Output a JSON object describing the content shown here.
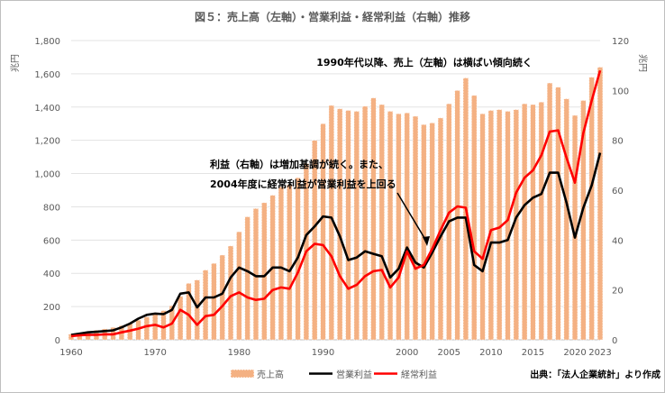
{
  "chart_data": {
    "type": "bar+line",
    "title": "図５：売上高（左軸）・営業利益・経常利益（右軸）推移",
    "y_left": {
      "unit": "兆円",
      "range": [
        0,
        1800
      ],
      "ticks": [
        "0",
        "200",
        "400",
        "600",
        "800",
        "1,000",
        "1,200",
        "1,400",
        "1,600",
        "1,800"
      ]
    },
    "y_right": {
      "unit": "兆円",
      "range": [
        0,
        120
      ],
      "ticks": [
        "0",
        "20",
        "40",
        "60",
        "80",
        "100",
        "120"
      ]
    },
    "x_ticks": [
      "1960",
      "1970",
      "1980",
      "1990",
      "2000",
      "2005",
      "2010",
      "2015",
      "2020",
      "2023"
    ],
    "grid": true,
    "legend_position": "bottom",
    "x": [
      1960,
      1961,
      1962,
      1963,
      1964,
      1965,
      1966,
      1967,
      1968,
      1969,
      1970,
      1971,
      1972,
      1973,
      1974,
      1975,
      1976,
      1977,
      1978,
      1979,
      1980,
      1981,
      1982,
      1983,
      1984,
      1985,
      1986,
      1987,
      1988,
      1989,
      1990,
      1991,
      1992,
      1993,
      1994,
      1995,
      1996,
      1997,
      1998,
      1999,
      2000,
      2001,
      2002,
      2003,
      2004,
      2005,
      2006,
      2007,
      2008,
      2009,
      2010,
      2011,
      2012,
      2013,
      2014,
      2015,
      2016,
      2017,
      2018,
      2019,
      2020,
      2021,
      2022,
      2023
    ],
    "series": [
      {
        "name": "売上高",
        "kind": "bar",
        "axis": "left",
        "color": "#f4b183",
        "values": [
          35,
          42,
          50,
          58,
          66,
          75,
          86,
          100,
          118,
          138,
          160,
          176,
          205,
          262,
          340,
          360,
          420,
          460,
          510,
          565,
          650,
          740,
          790,
          825,
          870,
          920,
          935,
          975,
          1060,
          1200,
          1300,
          1410,
          1390,
          1380,
          1375,
          1405,
          1455,
          1415,
          1375,
          1360,
          1365,
          1345,
          1295,
          1305,
          1335,
          1420,
          1500,
          1575,
          1470,
          1360,
          1380,
          1385,
          1375,
          1385,
          1420,
          1415,
          1430,
          1545,
          1520,
          1450,
          1350,
          1440,
          1580,
          1640
        ]
      },
      {
        "name": "営業利益",
        "kind": "line",
        "axis": "right",
        "color": "#000000",
        "values": [
          2,
          2.5,
          3,
          3.2,
          3.5,
          3.8,
          5,
          6.5,
          8.5,
          10,
          10.5,
          10.3,
          12,
          18.5,
          19,
          13,
          17,
          17,
          18.5,
          25,
          29,
          27.5,
          25.5,
          25.5,
          29,
          29,
          27.5,
          33,
          42,
          45.5,
          49.5,
          49,
          41.5,
          32,
          33,
          35.5,
          34.5,
          33.5,
          25,
          28.5,
          37,
          31,
          29,
          35,
          41.5,
          47.5,
          49,
          49,
          30,
          27.5,
          39,
          39,
          40,
          49,
          54,
          57,
          58.5,
          67,
          67,
          55,
          41,
          53,
          62,
          75
        ]
      },
      {
        "name": "経常利益",
        "kind": "line",
        "axis": "right",
        "color": "#ff0000",
        "values": [
          1.5,
          1.8,
          2,
          2,
          2.2,
          2.2,
          3,
          3.7,
          4.5,
          5.5,
          6,
          5,
          6.5,
          12,
          10,
          6,
          9.5,
          10,
          13.5,
          17.5,
          19,
          17,
          16,
          16.5,
          20,
          21,
          20.5,
          27,
          35.5,
          38.5,
          38,
          33.5,
          25.5,
          20.5,
          22,
          25.5,
          27.5,
          28,
          21,
          25,
          35.5,
          28.5,
          30,
          36.5,
          44,
          51,
          53.5,
          53,
          35.5,
          32.5,
          44,
          45,
          48,
          59,
          65,
          68,
          74,
          83.5,
          84,
          73,
          63,
          83,
          96,
          108
        ]
      }
    ],
    "annotations": [
      "1990年代以降、売上（左軸）は横ばい傾向続く",
      "利益（右軸）は増加基調が続く。また、",
      "2004年度に経常利益が営業利益を上回る"
    ],
    "source": "出典：「法人企業統計」より作成"
  }
}
